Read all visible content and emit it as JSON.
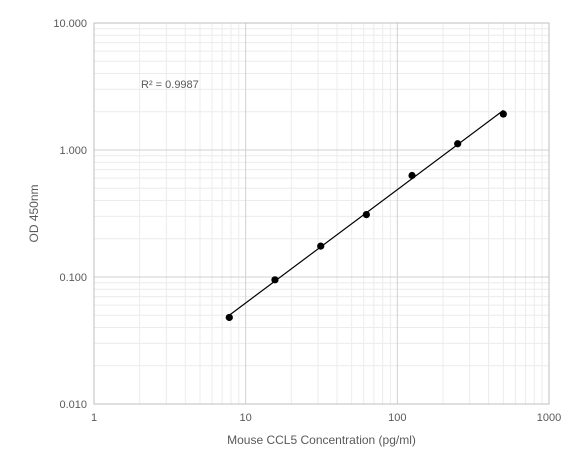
{
  "chart_data": {
    "type": "scatter",
    "title": "",
    "xlabel": "Mouse CCL5  Concentration (pg/ml)",
    "ylabel": "OD 450nm",
    "x_scale": "log",
    "y_scale": "log",
    "xlim": [
      1,
      1000
    ],
    "ylim": [
      0.01,
      10
    ],
    "x_ticks": [
      "1",
      "10",
      "100",
      "1000"
    ],
    "y_ticks": [
      "0.010",
      "0.100",
      "1.000",
      "10.000"
    ],
    "grid": true,
    "legend": "none",
    "annotation": "R² = 0.9987",
    "series": [
      {
        "x": [
          7.8,
          15.6,
          31.25,
          62.5,
          125,
          250,
          500
        ],
        "y": [
          0.048,
          0.095,
          0.175,
          0.31,
          0.63,
          1.12,
          1.92
        ],
        "color": "#000000",
        "trendline": {
          "type": "power",
          "x": [
            7.8,
            500
          ],
          "y": [
            0.05,
            2.05
          ]
        }
      }
    ]
  }
}
